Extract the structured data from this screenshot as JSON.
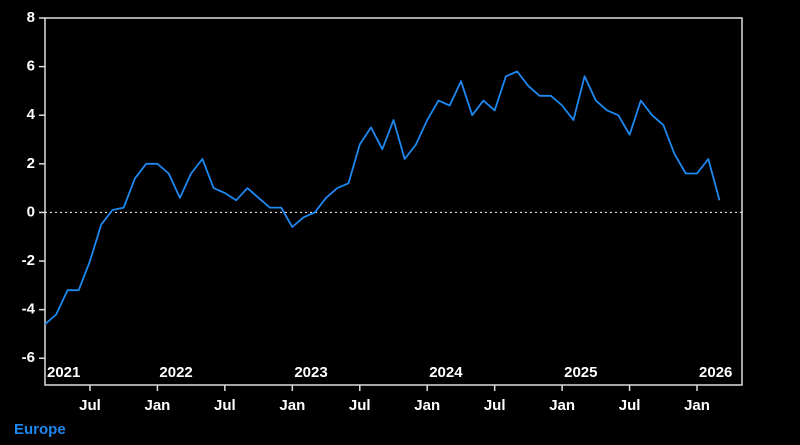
{
  "chart_data": {
    "type": "line",
    "x": [
      "2021-03",
      "2021-04",
      "2021-05",
      "2021-06",
      "2021-07",
      "2021-08",
      "2021-09",
      "2021-10",
      "2021-11",
      "2021-12",
      "2022-01",
      "2022-02",
      "2022-03",
      "2022-04",
      "2022-05",
      "2022-06",
      "2022-07",
      "2022-08",
      "2022-09",
      "2022-10",
      "2022-11",
      "2022-12",
      "2023-01",
      "2023-02",
      "2023-03",
      "2023-04",
      "2023-05",
      "2023-06",
      "2023-07",
      "2023-08",
      "2023-09",
      "2023-10",
      "2023-11",
      "2023-12",
      "2024-01",
      "2024-02",
      "2024-03",
      "2024-04",
      "2024-05",
      "2024-06",
      "2024-07",
      "2024-08",
      "2024-09",
      "2024-10",
      "2024-11",
      "2024-12",
      "2025-01",
      "2025-02",
      "2025-03",
      "2025-04",
      "2025-05",
      "2025-06",
      "2025-07",
      "2025-08",
      "2025-09",
      "2025-10",
      "2025-11",
      "2025-12",
      "2026-01",
      "2026-02",
      "2026-03"
    ],
    "series": [
      {
        "name": "Europe",
        "color": "#1e88f0",
        "values": [
          -4.6,
          -4.2,
          -3.2,
          -3.2,
          -2.0,
          -0.5,
          0.1,
          0.2,
          1.4,
          2.0,
          2.0,
          1.6,
          0.6,
          1.6,
          2.2,
          1.0,
          0.8,
          0.5,
          1.0,
          0.6,
          0.2,
          0.2,
          -0.6,
          -0.2,
          0.0,
          0.6,
          1.0,
          1.2,
          2.8,
          3.5,
          2.6,
          3.8,
          2.2,
          2.8,
          3.8,
          4.6,
          4.4,
          5.4,
          4.0,
          4.6,
          4.2,
          5.6,
          5.8,
          5.2,
          4.8,
          4.8,
          4.4,
          3.8,
          5.6,
          4.6,
          4.2,
          4.0,
          3.2,
          4.6,
          4.0,
          3.6,
          2.4,
          1.6,
          1.6,
          2.2,
          0.5
        ]
      }
    ],
    "xlim": [
      "2021-03",
      "2026-05"
    ],
    "ylim": [
      -7.1,
      8
    ],
    "yticks": [
      -6,
      -4,
      -2,
      0,
      2,
      4,
      6,
      8
    ],
    "xticks": [
      {
        "value": "2021-07",
        "label": "Jul"
      },
      {
        "value": "2022-01",
        "label": "Jan"
      },
      {
        "value": "2022-07",
        "label": "Jul"
      },
      {
        "value": "2023-01",
        "label": "Jan"
      },
      {
        "value": "2023-07",
        "label": "Jul"
      },
      {
        "value": "2024-01",
        "label": "Jan"
      },
      {
        "value": "2024-07",
        "label": "Jul"
      },
      {
        "value": "2025-01",
        "label": "Jan"
      },
      {
        "value": "2025-07",
        "label": "Jul"
      },
      {
        "value": "2026-01",
        "label": "Jan"
      }
    ],
    "year_ticks": [
      {
        "value": "2021-01",
        "label": "2021"
      },
      {
        "value": "2022-01",
        "label": "2022"
      },
      {
        "value": "2023-01",
        "label": "2023"
      },
      {
        "value": "2024-01",
        "label": "2024"
      },
      {
        "value": "2025-01",
        "label": "2025"
      },
      {
        "value": "2026-01",
        "label": "2026"
      }
    ],
    "zero_line": true
  }
}
